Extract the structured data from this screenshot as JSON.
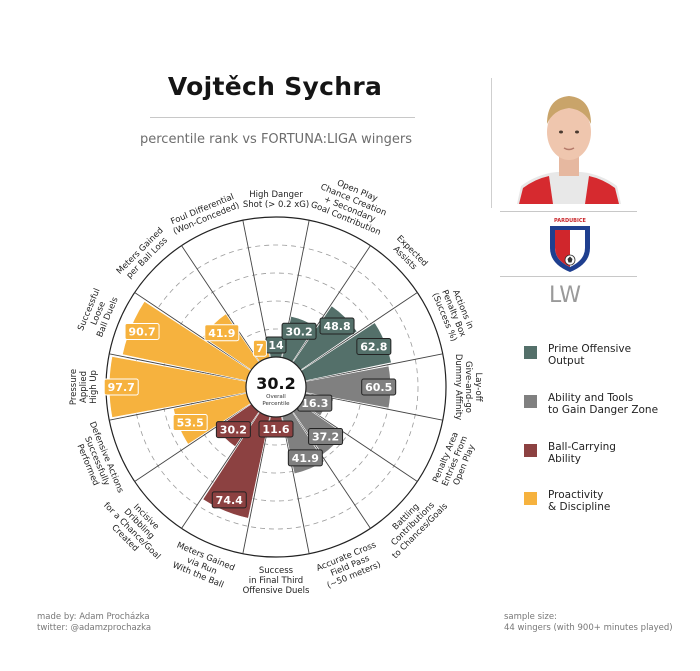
{
  "header": {
    "title": "Vojtěch Sychra",
    "subtitle": "percentile rank vs FORTUNA:LIGA wingers"
  },
  "player": {
    "position": "LW",
    "photo_icon": "player-photo-icon",
    "club_crest_icon": "pardubice-crest-icon",
    "club_crest_text": "PARDUBICE"
  },
  "legend": [
    {
      "label": "Prime Offensive\nOutput",
      "color": "#54706a"
    },
    {
      "label": "Ability and Tools\nto Gain Danger Zone",
      "color": "#808080"
    },
    {
      "label": "Ball-Carrying\nAbility",
      "color": "#8c4141"
    },
    {
      "label": "Proactivity\n& Discipline",
      "color": "#f6b23e"
    }
  ],
  "footer": {
    "credit_line1": "made by: Adam Procházka",
    "credit_line2": "twitter: @adamzprochazka",
    "sample_line1": "sample size:",
    "sample_line2": "44 wingers (with 900+ minutes played)"
  },
  "chart_data": {
    "type": "radar",
    "title": "Vojtěch Sychra",
    "subtitle": "percentile rank vs FORTUNA:LIGA wingers",
    "rlim": [
      0,
      100
    ],
    "grid": true,
    "center_value": "30.2",
    "center_label": "Overall\nPercentile",
    "categories": [
      {
        "label": "High Danger\nShot (> 0.2 xG)",
        "value": 14,
        "display": "14",
        "group": "Prime Offensive Output"
      },
      {
        "label": "Open Play\nChance Creation\n+ Secondary\nGoal Contribution",
        "value": 30.2,
        "display": "30.2",
        "group": "Prime Offensive Output"
      },
      {
        "label": "Expected\nAssists",
        "value": 48.8,
        "display": "48.8",
        "group": "Prime Offensive Output"
      },
      {
        "label": "Actions in\nPenalty Box\n(Success %)",
        "value": 62.8,
        "display": "62.8",
        "group": "Prime Offensive Output"
      },
      {
        "label": "Lay-off\nGive-and-go\nDummy Affinity",
        "value": 60.5,
        "display": "60.5",
        "group": "Ability and Tools to Gain Danger Zone"
      },
      {
        "label": "Penalty Area\nEntries From\nOpen Play",
        "value": 16.3,
        "display": "16.3",
        "group": "Ability and Tools to Gain Danger Zone"
      },
      {
        "label": "Battling\nContributions\nto Chances/Goals",
        "value": 37.2,
        "display": "37.2",
        "group": "Ability and Tools to Gain Danger Zone"
      },
      {
        "label": "Accurate Cross\nField Pass\n(~50 meters)",
        "value": 41.9,
        "display": "41.9",
        "group": "Ability and Tools to Gain Danger Zone"
      },
      {
        "label": "Success\nin Final Third\nOffensive Duels",
        "value": 11.6,
        "display": "11.6",
        "group": "Ball-Carrying Ability"
      },
      {
        "label": "Meters Gained\nvia Run\nWith the Ball",
        "value": 74.4,
        "display": "74.4",
        "group": "Ball-Carrying Ability"
      },
      {
        "label": "Incisive\nDribbling\nfor a Chance/Goal\nCreated",
        "value": 30.2,
        "display": "30.2",
        "group": "Ball-Carrying Ability"
      },
      {
        "label": "Defensive Actions\nSuccessfully\nPerformed",
        "value": 53.5,
        "display": "53.5",
        "group": "Proactivity & Discipline"
      },
      {
        "label": "Pressure\nApplied\nHigh Up",
        "value": 97.7,
        "display": "97.7",
        "group": "Proactivity & Discipline"
      },
      {
        "label": "Successful\nLoose\nBall Duels",
        "value": 90.7,
        "display": "90.7",
        "group": "Proactivity & Discipline"
      },
      {
        "label": "Meters Gained\nper Ball Loss",
        "value": 41.9,
        "display": "41.9",
        "group": "Proactivity & Discipline"
      },
      {
        "label": "Foul Differential\n(Won-Conceded)",
        "value": 7,
        "display": "7",
        "group": "Proactivity & Discipline"
      }
    ],
    "group_colors": {
      "Prime Offensive Output": "#54706a",
      "Ability and Tools to Gain Danger Zone": "#808080",
      "Ball-Carrying Ability": "#8c4141",
      "Proactivity & Discipline": "#f6b23e"
    }
  }
}
